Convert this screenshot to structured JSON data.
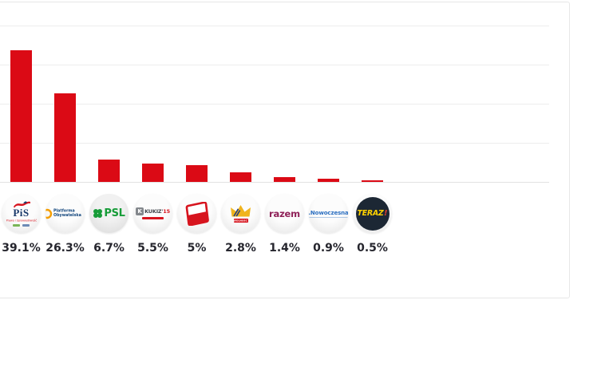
{
  "page": {
    "background": "#ffffff"
  },
  "card": {
    "background": "#ffffff",
    "border_color": "#e7e7e7"
  },
  "chart_data": {
    "type": "bar",
    "title": "",
    "xlabel": "",
    "ylabel": "",
    "legend": "none",
    "grid": true,
    "gridline_color": "#ededed",
    "bar_color": "#db0a15",
    "ylim": [
      0,
      47
    ],
    "categories": [
      "PiS",
      "Platforma Obywatelska",
      "PSL",
      "Kukiz'15",
      "SLD",
      "Wolność",
      "Razem",
      "Nowoczesna",
      "Teraz!"
    ],
    "values": [
      39.1,
      26.3,
      6.7,
      5.5,
      5,
      2.8,
      1.4,
      0.9,
      0.5
    ],
    "value_labels": [
      "39.1%",
      "26.3%",
      "6.7%",
      "5.5%",
      "5%",
      "2.8%",
      "1.4%",
      "0.9%",
      "0.5%"
    ],
    "parties": [
      {
        "id": "pis",
        "name": "PiS",
        "value": 39.1,
        "label": "39.1%",
        "logo_text": "PiS",
        "logo_subtext": "Prawo i Sprawiedliwość",
        "colors": {
          "navy": "#1a3a6b",
          "red": "#d7141e"
        }
      },
      {
        "id": "po",
        "name": "Platforma Obywatelska",
        "value": 26.3,
        "label": "26.3%",
        "logo_lines": [
          "Platforma",
          "Obywatelska"
        ],
        "colors": {
          "orange": "#f59e00",
          "navy": "#11457c"
        }
      },
      {
        "id": "psl",
        "name": "PSL",
        "value": 6.7,
        "label": "6.7%",
        "logo_text": "PSL",
        "colors": {
          "green": "#169c38"
        }
      },
      {
        "id": "kukiz15",
        "name": "Kukiz'15",
        "value": 5.5,
        "label": "5.5%",
        "logo_box_letter": "K",
        "logo_text": "KUKIZ'",
        "logo_accent": "15",
        "colors": {
          "grey": "#83878c",
          "dark": "#42464d",
          "red": "#d7141e"
        }
      },
      {
        "id": "sld",
        "name": "SLD",
        "value": 5,
        "label": "5%",
        "colors": {
          "red": "#d7141e"
        }
      },
      {
        "id": "wolnosc",
        "name": "Wolność",
        "value": 2.8,
        "label": "2.8%",
        "logo_text": "WOLNOŚĆ",
        "colors": {
          "gold": "#f0b41e",
          "navy": "#233d7b",
          "red": "#d7141e"
        }
      },
      {
        "id": "razem",
        "name": "Razem",
        "value": 1.4,
        "label": "1.4%",
        "logo_text": "razem",
        "colors": {
          "plum": "#8f2158"
        }
      },
      {
        "id": "nowoczesna",
        "name": "Nowoczesna",
        "value": 0.9,
        "label": "0.9%",
        "logo_text": ".Nowoczesna",
        "colors": {
          "blue": "#2b6fc1"
        }
      },
      {
        "id": "teraz",
        "name": "Teraz!",
        "value": 0.5,
        "label": "0.5%",
        "logo_text": "TERAZ",
        "logo_accent": "!",
        "colors": {
          "bg": "#1c2734",
          "yellow": "#ffd200",
          "red": "#e0402e"
        }
      }
    ]
  }
}
